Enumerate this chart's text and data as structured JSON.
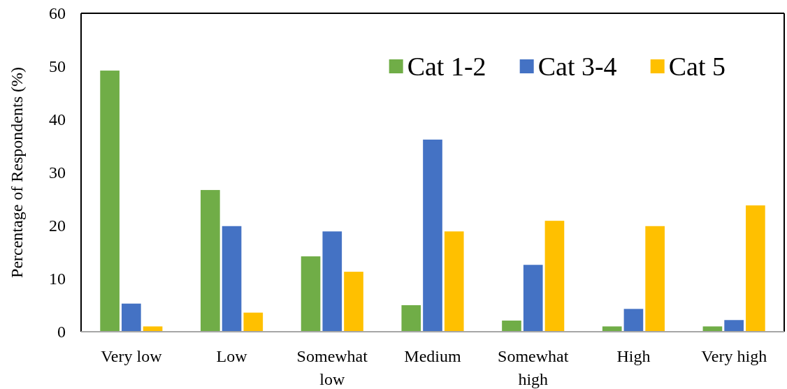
{
  "chart_data": {
    "type": "bar",
    "ylabel": "Percentage of Respondents (%)",
    "categories": [
      "Very low",
      "Low",
      "Somewhat low",
      "Medium",
      "Somewhat high",
      "High",
      "Very high"
    ],
    "series": [
      {
        "name": "Cat 1-2",
        "color": "#70ad47",
        "values": [
          49.2,
          26.7,
          14.2,
          5.0,
          2.1,
          1.0,
          1.0
        ]
      },
      {
        "name": "Cat 3-4",
        "color": "#4472c4",
        "values": [
          5.3,
          19.9,
          18.9,
          36.2,
          12.6,
          4.3,
          2.2
        ]
      },
      {
        "name": "Cat 5",
        "color": "#ffc000",
        "values": [
          1.0,
          3.6,
          11.3,
          18.9,
          20.9,
          19.9,
          23.8
        ]
      }
    ],
    "ylim": [
      0,
      60
    ],
    "yticks": [
      0,
      10,
      20,
      30,
      40,
      50,
      60
    ],
    "grid": false,
    "legend": "top right"
  }
}
